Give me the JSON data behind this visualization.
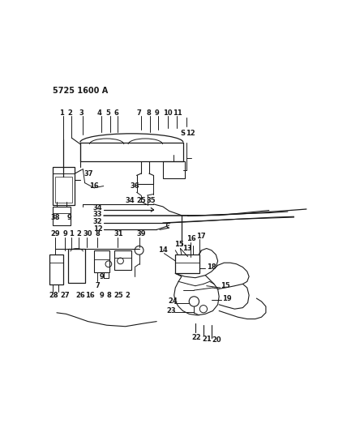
{
  "title": "5725 1600 A",
  "bg_color": "#ffffff",
  "line_color": "#1a1a1a",
  "fig_width": 4.28,
  "fig_height": 5.33,
  "dpi": 100
}
